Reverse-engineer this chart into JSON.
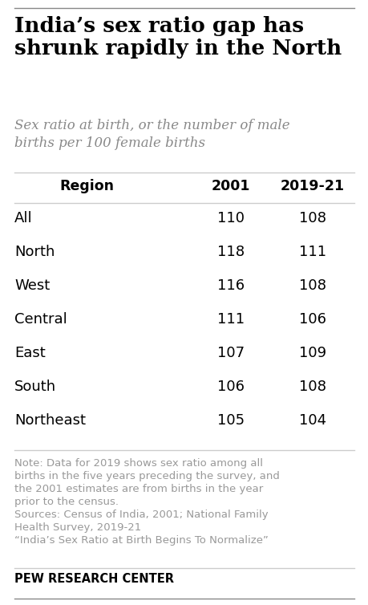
{
  "title": "India’s sex ratio gap has\nshrunk rapidly in the North",
  "subtitle": "Sex ratio at birth, or the number of male\nbirths per 100 female births",
  "col_headers": [
    "Region",
    "2001",
    "2019-21"
  ],
  "rows": [
    [
      "All",
      "110",
      "108"
    ],
    [
      "North",
      "118",
      "111"
    ],
    [
      "West",
      "116",
      "108"
    ],
    [
      "Central",
      "111",
      "106"
    ],
    [
      "East",
      "107",
      "109"
    ],
    [
      "South",
      "106",
      "108"
    ],
    [
      "Northeast",
      "105",
      "104"
    ]
  ],
  "note_line1": "Note: Data for 2019 shows sex ratio among all",
  "note_line2": "births in the five years preceding the survey, and",
  "note_line3": "the 2001 estimates are from births in the year",
  "note_line4": "prior to the census.",
  "note_line5": "Sources: Census of India, 2001; National Family",
  "note_line6": "Health Survey, 2019-21",
  "note_line7": "“India’s Sex Ratio at Birth Begins To Normalize”",
  "footer": "PEW RESEARCH CENTER",
  "bg_color": "#ffffff",
  "title_color": "#000000",
  "subtitle_color": "#888888",
  "header_color": "#000000",
  "row_color": "#000000",
  "note_color": "#999999",
  "footer_color": "#000000",
  "divider_color": "#cccccc",
  "top_line_color": "#888888"
}
